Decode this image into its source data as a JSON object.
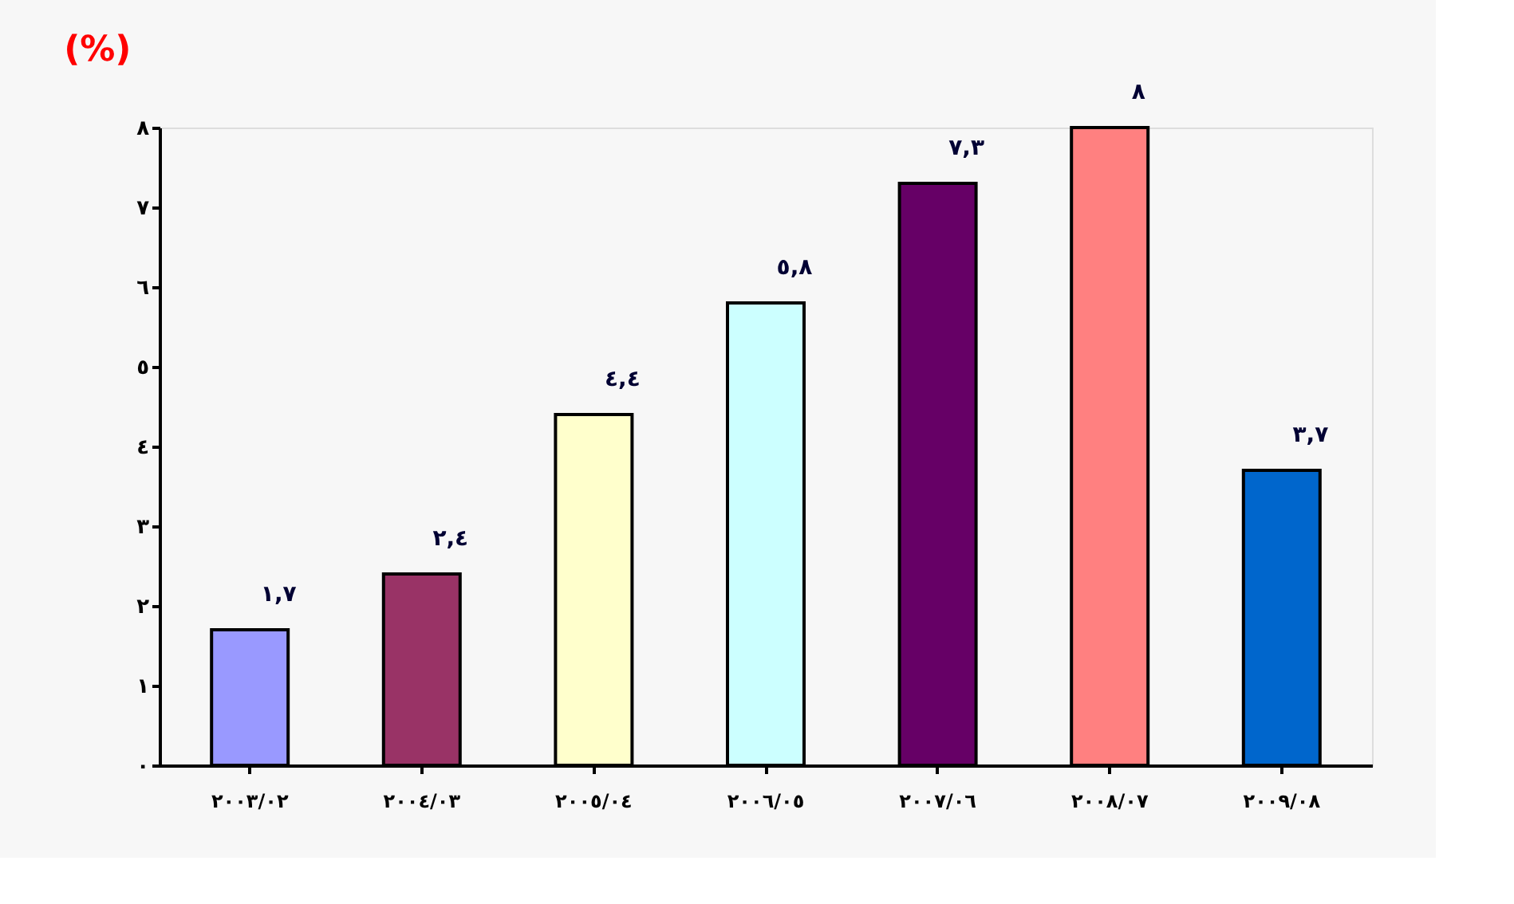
{
  "chart_data": {
    "type": "bar",
    "title": "(%)",
    "categories": [
      "٢٠٠٣/٠٢",
      "٢٠٠٤/٠٣",
      "٢٠٠٥/٠٤",
      "٢٠٠٦/٠٥",
      "٢٠٠٧/٠٦",
      "٢٠٠٨/٠٧",
      "٢٠٠٩/٠٨"
    ],
    "values": [
      1.7,
      2.4,
      4.4,
      5.8,
      7.3,
      8,
      3.7
    ],
    "value_labels": [
      "١,٧",
      "٢,٤",
      "٤,٤",
      "٥,٨",
      "٧,٣",
      "٨",
      "٣,٧"
    ],
    "colors": [
      "#9999ff",
      "#993366",
      "#ffffcc",
      "#ccffff",
      "#660066",
      "#ff8080",
      "#0066cc"
    ],
    "ylim": [
      0,
      8
    ],
    "yticks": [
      {
        "value": 0,
        "label": "٠"
      },
      {
        "value": 1,
        "label": "١"
      },
      {
        "value": 2,
        "label": "٢"
      },
      {
        "value": 3,
        "label": "٣"
      },
      {
        "value": 4,
        "label": "٤"
      },
      {
        "value": 5,
        "label": "٥"
      },
      {
        "value": 6,
        "label": "٦"
      },
      {
        "value": 7,
        "label": "٧"
      },
      {
        "value": 8,
        "label": "٨"
      }
    ],
    "grid": false
  }
}
